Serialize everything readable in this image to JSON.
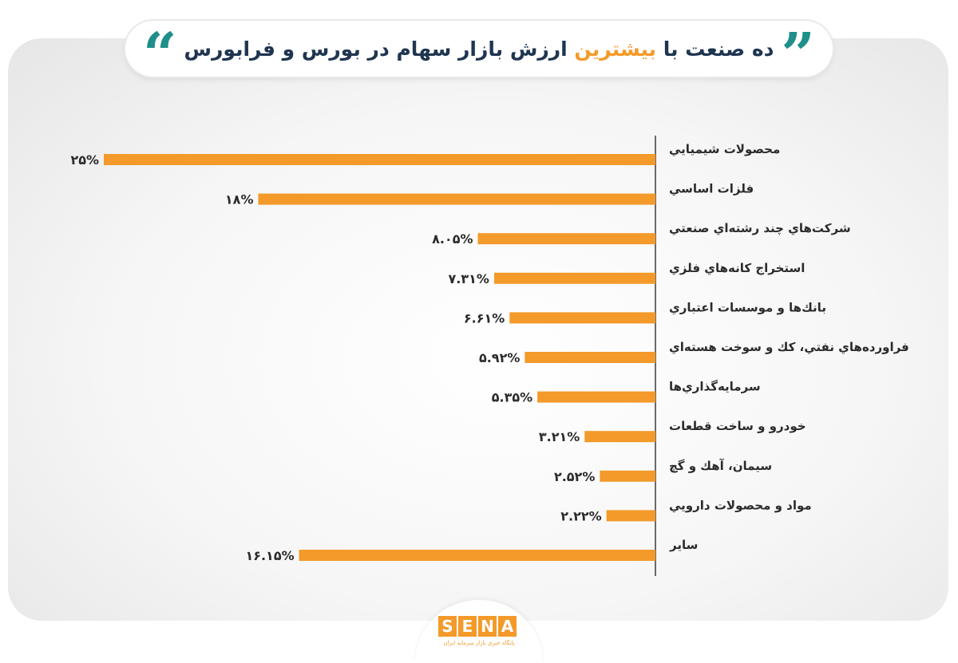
{
  "title": {
    "part1": "ده صنعت با ",
    "highlight": "بيشترين",
    "part2": " ارزش بازار سهام در بورس و فرابورس"
  },
  "logo": {
    "letters": [
      "S",
      "E",
      "N",
      "A"
    ],
    "subtitle": "پایگاه خبری بازار سرمایه ایران"
  },
  "colors": {
    "bar": "#f39a2a",
    "accent": "#1e8f8a",
    "title": "#1f3550",
    "label": "#2b2b2b"
  },
  "chart_data": {
    "type": "bar",
    "orientation": "horizontal",
    "categories": [
      "محصولات شيميايي",
      "فلزات اساسي",
      "شركت‌هاي چند رشته‌اي صنعتي",
      "استخراج كانه‌هاي فلزي",
      "بانك‌ها و موسسات اعتباري",
      "فراورده‌هاي نفتي، كك و سوخت هسته‌اي",
      "سرمايه‌گذاري‌ها",
      "خودرو و ساخت قطعات",
      "سيمان، آهك و گچ",
      "مواد و محصولات دارويي",
      "ساير"
    ],
    "values": [
      25,
      18,
      8.05,
      7.31,
      6.61,
      5.92,
      5.35,
      3.21,
      2.52,
      2.22,
      16.15
    ],
    "value_labels": [
      "۲۵%",
      "۱۸%",
      "۸.۰۵%",
      "۷.۳۱%",
      "۶.۶۱%",
      "۵.۹۲%",
      "۵.۳۵%",
      "۳.۲۱%",
      "۲.۵۲%",
      "۲.۲۲%",
      "۱۶.۱۵%"
    ],
    "xlim": [
      0,
      25
    ],
    "grid": false
  }
}
